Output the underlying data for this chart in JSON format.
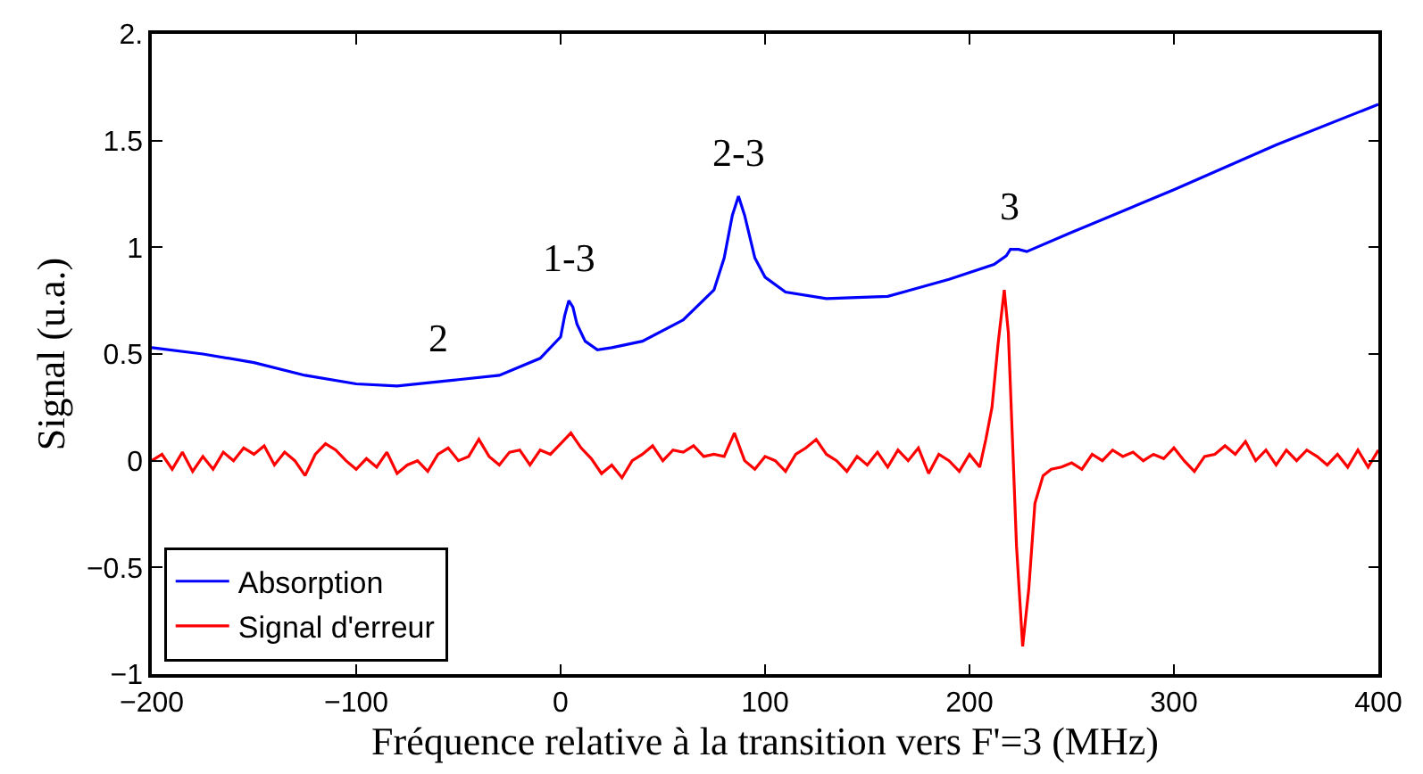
{
  "chart_data": {
    "type": "line",
    "xlabel": "Fréquence relative à la transition vers F'=3 (MHz)",
    "ylabel": "Signal (u.a.)",
    "xlim": [
      -200,
      400
    ],
    "xticks": [
      {
        "value": -200,
        "label": "−200"
      },
      {
        "value": -100,
        "label": "−100"
      },
      0,
      100,
      200,
      300,
      400
    ],
    "ylim": [
      -1,
      2
    ],
    "yticks": [
      {
        "value": -1,
        "label": "−1"
      },
      {
        "value": -0.5,
        "label": "−0.5"
      },
      0,
      0.5,
      1,
      1.5,
      {
        "value": 2,
        "label": "2."
      }
    ],
    "legend": "bottom left",
    "series": [
      {
        "name": "Absorption",
        "color": "#0000ff",
        "x": [
          -200,
          -175,
          -150,
          -125,
          -100,
          -80,
          -60,
          -50,
          -30,
          -10,
          0,
          2,
          4,
          6,
          8,
          12,
          18,
          25,
          40,
          60,
          75,
          80,
          84,
          87,
          90,
          95,
          100,
          110,
          130,
          160,
          190,
          212,
          218,
          220,
          224,
          228,
          250,
          300,
          350,
          400
        ],
        "values": [
          0.53,
          0.5,
          0.46,
          0.4,
          0.36,
          0.35,
          0.37,
          0.38,
          0.4,
          0.48,
          0.58,
          0.68,
          0.75,
          0.72,
          0.64,
          0.56,
          0.52,
          0.53,
          0.56,
          0.66,
          0.8,
          0.95,
          1.15,
          1.24,
          1.15,
          0.95,
          0.86,
          0.79,
          0.76,
          0.77,
          0.85,
          0.92,
          0.96,
          0.99,
          0.99,
          0.98,
          1.07,
          1.27,
          1.48,
          1.67
        ]
      },
      {
        "name": "Signal d'erreur",
        "color": "#ff0000",
        "x": [
          -200,
          -195,
          -190,
          -185,
          -180,
          -175,
          -170,
          -165,
          -160,
          -155,
          -150,
          -145,
          -140,
          -135,
          -130,
          -125,
          -120,
          -115,
          -110,
          -105,
          -100,
          -95,
          -90,
          -85,
          -80,
          -75,
          -70,
          -65,
          -60,
          -55,
          -50,
          -45,
          -40,
          -35,
          -30,
          -25,
          -20,
          -15,
          -10,
          -5,
          0,
          5,
          10,
          15,
          20,
          25,
          30,
          35,
          40,
          45,
          50,
          55,
          60,
          65,
          70,
          75,
          80,
          85,
          90,
          95,
          100,
          105,
          110,
          115,
          120,
          125,
          130,
          135,
          140,
          145,
          150,
          155,
          160,
          165,
          170,
          175,
          180,
          185,
          190,
          195,
          200,
          205,
          208,
          211,
          214,
          217,
          219,
          221,
          223,
          226,
          229,
          232,
          236,
          240,
          245,
          250,
          255,
          260,
          265,
          270,
          275,
          280,
          285,
          290,
          295,
          300,
          305,
          310,
          315,
          320,
          325,
          330,
          335,
          340,
          345,
          350,
          355,
          360,
          365,
          370,
          375,
          380,
          385,
          390,
          395,
          400
        ],
        "values": [
          0.0,
          0.03,
          -0.04,
          0.04,
          -0.05,
          0.02,
          -0.04,
          0.04,
          0.0,
          0.06,
          0.03,
          0.07,
          -0.02,
          0.04,
          0.0,
          -0.07,
          0.03,
          0.08,
          0.05,
          0.0,
          -0.04,
          0.01,
          -0.03,
          0.04,
          -0.06,
          -0.02,
          0.0,
          -0.05,
          0.03,
          0.06,
          0.0,
          0.02,
          0.1,
          0.02,
          -0.02,
          0.04,
          0.05,
          -0.02,
          0.05,
          0.03,
          0.08,
          0.13,
          0.06,
          0.01,
          -0.06,
          -0.02,
          -0.08,
          0.0,
          0.03,
          0.07,
          0.0,
          0.05,
          0.04,
          0.07,
          0.02,
          0.03,
          0.02,
          0.13,
          0.0,
          -0.04,
          0.02,
          0.0,
          -0.05,
          0.03,
          0.06,
          0.1,
          0.03,
          0.0,
          -0.05,
          0.02,
          -0.02,
          0.04,
          -0.03,
          0.05,
          0.0,
          0.06,
          -0.06,
          0.03,
          0.0,
          -0.05,
          0.03,
          -0.03,
          0.1,
          0.25,
          0.55,
          0.8,
          0.6,
          0.1,
          -0.4,
          -0.87,
          -0.6,
          -0.2,
          -0.07,
          -0.04,
          -0.03,
          -0.01,
          -0.04,
          0.03,
          0.0,
          0.05,
          0.02,
          0.04,
          0.0,
          0.03,
          0.01,
          0.06,
          0.0,
          -0.05,
          0.02,
          0.03,
          0.07,
          0.03,
          0.09,
          0.0,
          0.05,
          -0.02,
          0.05,
          0.0,
          0.05,
          0.02,
          -0.02,
          0.03,
          -0.03,
          0.05,
          -0.03,
          0.05
        ]
      }
    ],
    "annotations": [
      {
        "text": "2",
        "x": -60,
        "y": 0.37
      },
      {
        "text": "1-3",
        "x": 4,
        "y": 0.75
      },
      {
        "text": "2-3",
        "x": 87,
        "y": 1.24
      },
      {
        "text": "3",
        "x": 220,
        "y": 0.99
      }
    ]
  }
}
